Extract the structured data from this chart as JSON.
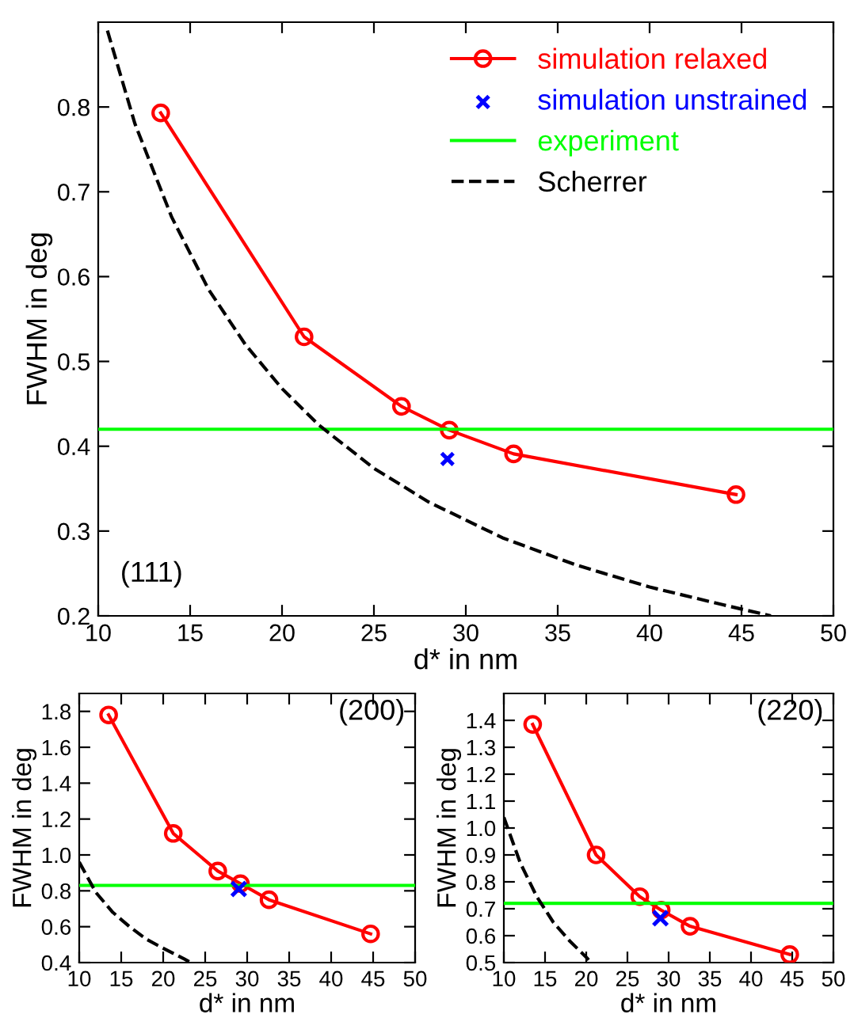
{
  "chart_data": [
    {
      "type": "line",
      "xlabel": "d* in nm",
      "ylabel": "FWHM in deg",
      "xlim": [
        10,
        50
      ],
      "xticks": [
        10,
        15,
        20,
        25,
        30,
        35,
        40,
        45,
        50
      ],
      "ylim": [
        0.2,
        0.9
      ],
      "yticks": [
        0.2,
        0.3,
        0.4,
        0.5,
        0.6,
        0.7,
        0.8
      ],
      "grid": false,
      "legend": "top right",
      "annotations": [
        "(111)"
      ],
      "series": [
        {
          "name": "simulation relaxed",
          "color": "#ff0000",
          "marker": "circle",
          "line_style": "solid",
          "x": [
            13.4,
            21.2,
            26.5,
            29.1,
            32.6,
            44.7
          ],
          "values": [
            0.793,
            0.529,
            0.447,
            0.419,
            0.391,
            0.343
          ]
        },
        {
          "name": "simulation unstrained",
          "type": "scatter",
          "color": "#0000ff",
          "marker": "cross",
          "x": [
            29.0
          ],
          "values": [
            0.385
          ]
        },
        {
          "name": "experiment",
          "color": "#00ff00",
          "marker": "none",
          "line_style": "solid",
          "x": [
            10,
            50
          ],
          "values": [
            0.42,
            0.42
          ]
        },
        {
          "name": "Scherrer",
          "color": "#000000",
          "marker": "none",
          "line_style": "dashed",
          "x": [
            10.5,
            12,
            14,
            16,
            18,
            20,
            22,
            25,
            28,
            32,
            36,
            40,
            44,
            46.6
          ],
          "values": [
            0.89,
            0.78,
            0.67,
            0.585,
            0.52,
            0.468,
            0.425,
            0.374,
            0.334,
            0.292,
            0.26,
            0.234,
            0.213,
            0.2
          ]
        }
      ]
    },
    {
      "type": "line",
      "xlabel": "d* in nm",
      "ylabel": "FWHM in deg",
      "xlim": [
        10,
        50
      ],
      "xticks": [
        10,
        15,
        20,
        25,
        30,
        35,
        40,
        45,
        50
      ],
      "ylim": [
        0.4,
        1.9
      ],
      "yticks": [
        {
          "value": 0.4,
          "label": "0.4"
        },
        {
          "value": 0.6,
          "label": "0.6"
        },
        {
          "value": 0.8,
          "label": "0.8"
        },
        {
          "value": 1.0,
          "label": "1.0"
        },
        {
          "value": 1.2,
          "label": "1.2"
        },
        {
          "value": 1.4,
          "label": "1.4"
        },
        {
          "value": 1.6,
          "label": "1.6"
        },
        {
          "value": 1.8,
          "label": "1.8"
        }
      ],
      "grid": false,
      "annotations": [
        "(200)"
      ],
      "series": [
        {
          "color": "#ff0000",
          "marker": "circle",
          "line_style": "solid",
          "x": [
            13.5,
            21.2,
            26.5,
            29.2,
            32.6,
            44.7
          ],
          "values": [
            1.78,
            1.12,
            0.91,
            0.84,
            0.75,
            0.56
          ]
        },
        {
          "type": "scatter",
          "color": "#0000ff",
          "marker": "cross",
          "x": [
            29.0
          ],
          "values": [
            0.81
          ]
        },
        {
          "color": "#00ff00",
          "marker": "none",
          "line_style": "solid",
          "x": [
            10,
            50
          ],
          "values": [
            0.83,
            0.83
          ]
        },
        {
          "color": "#000000",
          "marker": "none",
          "line_style": "dashed",
          "x": [
            10,
            12,
            14,
            16,
            18,
            20,
            22.5,
            23.3
          ],
          "values": [
            0.96,
            0.79,
            0.68,
            0.6,
            0.53,
            0.48,
            0.42,
            0.4
          ]
        }
      ]
    },
    {
      "type": "line",
      "xlabel": "d* in nm",
      "ylabel": "FWHM in deg",
      "xlim": [
        10,
        50
      ],
      "xticks": [
        10,
        15,
        20,
        25,
        30,
        35,
        40,
        45,
        50
      ],
      "ylim": [
        0.5,
        1.5
      ],
      "yticks": [
        {
          "value": 0.5,
          "label": "0.5"
        },
        {
          "value": 0.6,
          "label": "0.6"
        },
        {
          "value": 0.7,
          "label": "0.7"
        },
        {
          "value": 0.8,
          "label": "0.8"
        },
        {
          "value": 0.9,
          "label": "0.9"
        },
        {
          "value": 1.0,
          "label": "1.0"
        },
        {
          "value": 1.1,
          "label": "1.1"
        },
        {
          "value": 1.2,
          "label": "1.2"
        },
        {
          "value": 1.3,
          "label": "1.3"
        },
        {
          "value": 1.4,
          "label": "1.4"
        }
      ],
      "grid": false,
      "annotations": [
        "(220)"
      ],
      "series": [
        {
          "color": "#ff0000",
          "marker": "circle",
          "line_style": "solid",
          "x": [
            13.5,
            21.2,
            26.5,
            29.1,
            32.6,
            44.7
          ],
          "values": [
            1.385,
            0.9,
            0.745,
            0.695,
            0.635,
            0.53
          ]
        },
        {
          "type": "scatter",
          "color": "#0000ff",
          "marker": "cross",
          "x": [
            29.0
          ],
          "values": [
            0.665
          ]
        },
        {
          "color": "#00ff00",
          "marker": "none",
          "line_style": "solid",
          "x": [
            10,
            50
          ],
          "values": [
            0.72,
            0.72
          ]
        },
        {
          "color": "#000000",
          "marker": "none",
          "line_style": "dashed",
          "x": [
            10,
            12,
            14,
            16,
            18,
            20,
            20.3
          ],
          "values": [
            1.04,
            0.87,
            0.745,
            0.65,
            0.58,
            0.52,
            0.51
          ]
        }
      ]
    }
  ]
}
